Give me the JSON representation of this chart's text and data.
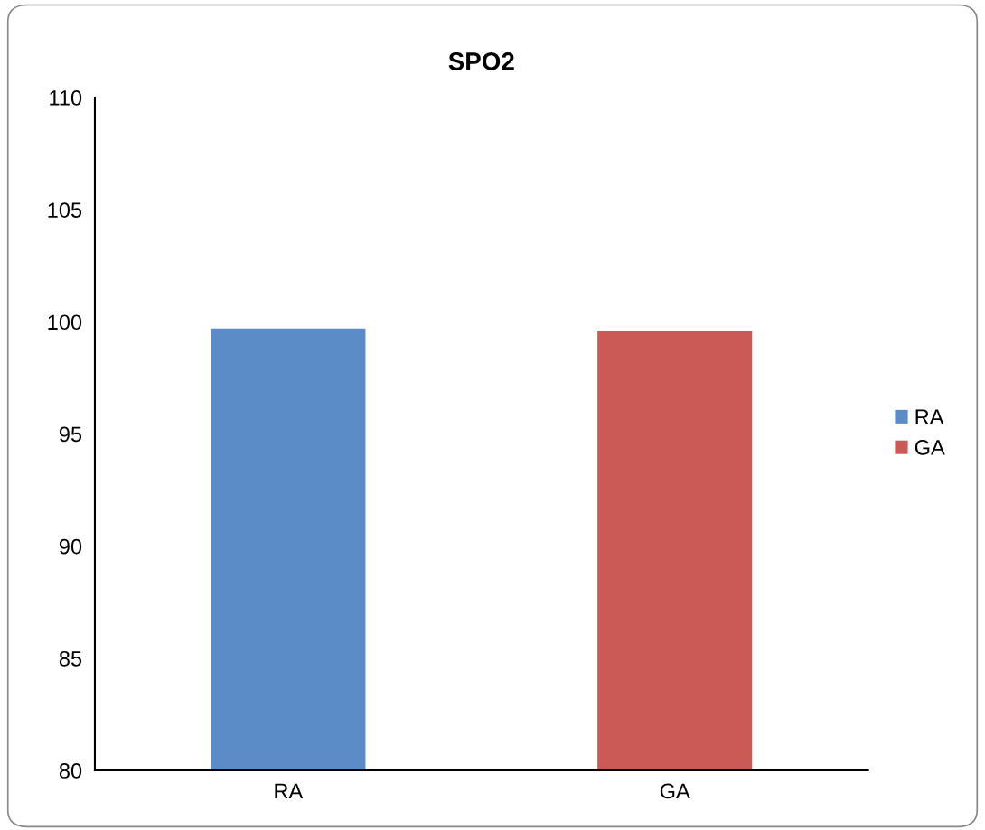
{
  "chart_data": {
    "type": "bar",
    "title": "SPO2",
    "categories": [
      "RA",
      "GA"
    ],
    "series": [
      {
        "name": "RA",
        "color": "#5b8cc8",
        "values": [
          99.7,
          null
        ]
      },
      {
        "name": "GA",
        "color": "#cb5a56",
        "values": [
          null,
          99.6
        ]
      }
    ],
    "ylim": [
      80,
      110
    ],
    "yticks": [
      80,
      85,
      90,
      95,
      100,
      105,
      110
    ],
    "grid": false,
    "legend": "right"
  }
}
